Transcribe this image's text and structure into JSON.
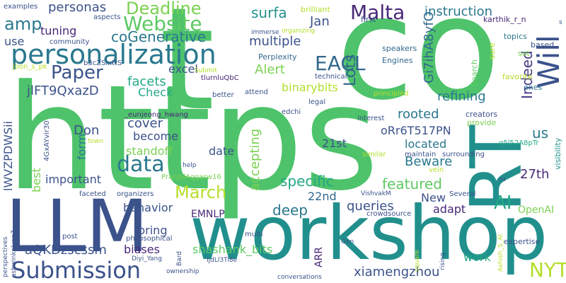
{
  "words": [
    {
      "text": "https",
      "color": "#4ec36b"
    },
    {
      "text": "t",
      "color": "#4ec36b"
    },
    {
      "text": "co",
      "color": "#4ec36b"
    },
    {
      "text": "workshop",
      "color": "#21908d"
    },
    {
      "text": "LLM",
      "color": "#3b528b"
    },
    {
      "text": "RT",
      "color": "#21908d"
    },
    {
      "text": "personalization",
      "color": "#2a788e"
    },
    {
      "text": "Submission",
      "color": "#3b528b"
    },
    {
      "text": "Website",
      "color": "#5ec962"
    },
    {
      "text": "Will",
      "color": "#3b528b"
    },
    {
      "text": "Malta",
      "color": "#482878"
    },
    {
      "text": "Paper",
      "color": "#3b528b"
    },
    {
      "text": "EACL",
      "color": "#31688e"
    },
    {
      "text": "Deadline",
      "color": "#7ad151"
    },
    {
      "text": "amp",
      "color": "#2a788e"
    },
    {
      "text": "data",
      "color": "#2a788e"
    },
    {
      "text": "March",
      "color": "#b5de2b"
    },
    {
      "text": "NYT",
      "color": "#b5de2b"
    },
    {
      "text": "AI",
      "color": "#22a884"
    },
    {
      "text": "Lots",
      "color": "#31688e"
    },
    {
      "text": "Indeed",
      "color": "#443983"
    },
    {
      "text": "Gi7ihA8yfO",
      "color": "#31688e"
    },
    {
      "text": "coGenerative",
      "color": "#2a788e"
    },
    {
      "text": "instruction",
      "color": "#2a788e"
    },
    {
      "text": "surfa",
      "color": "#21908d"
    },
    {
      "text": "Jan",
      "color": "#3b528b"
    },
    {
      "text": "multiple",
      "color": "#3b528b"
    },
    {
      "text": "personas",
      "color": "#3b528b"
    },
    {
      "text": "tuning",
      "color": "#482878"
    },
    {
      "text": "use",
      "color": "#3b528b"
    },
    {
      "text": "Alert",
      "color": "#7ad151"
    },
    {
      "text": "excel",
      "color": "#3b528b"
    },
    {
      "text": "facets",
      "color": "#22a884"
    },
    {
      "text": "jlFT9QxazD",
      "color": "#3b528b"
    },
    {
      "text": "Check",
      "color": "#22a884"
    },
    {
      "text": "binarybits",
      "color": "#b5de2b"
    },
    {
      "text": "refining",
      "color": "#2a788e"
    },
    {
      "text": "rooted",
      "color": "#2a788e"
    },
    {
      "text": "oRr6T517PN",
      "color": "#3b528b"
    },
    {
      "text": "us",
      "color": "#2a788e"
    },
    {
      "text": "cover",
      "color": "#3b528b"
    },
    {
      "text": "Don",
      "color": "#3b528b"
    },
    {
      "text": "become",
      "color": "#3b528b"
    },
    {
      "text": "form",
      "color": "#2a788e"
    },
    {
      "text": "standoff",
      "color": "#7ad151"
    },
    {
      "text": "date",
      "color": "#3b528b"
    },
    {
      "text": "21st",
      "color": "#3b528b"
    },
    {
      "text": "located",
      "color": "#2a788e"
    },
    {
      "text": "accepting",
      "color": "#7ad151"
    },
    {
      "text": "Beware",
      "color": "#2a788e"
    },
    {
      "text": "best",
      "color": "#7ad151"
    },
    {
      "text": "important",
      "color": "#3b528b"
    },
    {
      "text": "specific",
      "color": "#22a884"
    },
    {
      "text": "featured",
      "color": "#5ec962"
    },
    {
      "text": "22nd",
      "color": "#31688e"
    },
    {
      "text": "New",
      "color": "#3b528b"
    },
    {
      "text": "27th",
      "color": "#482878"
    },
    {
      "text": "behavior",
      "color": "#3b528b"
    },
    {
      "text": "EMNLP",
      "color": "#482878"
    },
    {
      "text": "deep",
      "color": "#2a788e"
    },
    {
      "text": "queries",
      "color": "#3b528b"
    },
    {
      "text": "adapt",
      "color": "#482878"
    },
    {
      "text": "OpenAI",
      "color": "#7ad151"
    },
    {
      "text": "bring",
      "color": "#3b528b"
    },
    {
      "text": "aQKDzscssm",
      "color": "#3b528b"
    },
    {
      "text": "biases",
      "color": "#482878"
    },
    {
      "text": "shashank_bits",
      "color": "#5ec962"
    },
    {
      "text": "xiamengzhou",
      "color": "#3b528b"
    },
    {
      "text": "ARR",
      "color": "#482878"
    },
    {
      "text": "work",
      "color": "#22a884"
    },
    {
      "text": "lWVZPDWSii",
      "color": "#3b528b"
    },
    {
      "text": "Perplexity",
      "color": "#31688e"
    },
    {
      "text": "speakers",
      "color": "#31688e"
    },
    {
      "text": "Engines",
      "color": "#31688e"
    },
    {
      "text": "Search",
      "color": "#5ec962"
    },
    {
      "text": "favorite",
      "color": "#b5de2b"
    },
    {
      "text": "brilliant",
      "color": "#b5de2b"
    },
    {
      "text": "first",
      "color": "#3b528b"
    },
    {
      "text": "karthik_r_n",
      "color": "#482878"
    },
    {
      "text": "topics",
      "color": "#2a788e"
    },
    {
      "text": "based",
      "color": "#3b528b"
    },
    {
      "text": "set",
      "color": "#7ad151"
    },
    {
      "text": "sure",
      "color": "#b5de2b"
    },
    {
      "text": "ones",
      "color": "#2a788e"
    },
    {
      "text": "visibility",
      "color": "#21908d"
    },
    {
      "text": "expertise",
      "color": "#3b528b"
    },
    {
      "text": "creators",
      "color": "#3b528b"
    },
    {
      "text": "provide",
      "color": "#7ad151"
    },
    {
      "text": "q5l52A8pTr",
      "color": "#22a884"
    },
    {
      "text": "examples",
      "color": "#3b528b"
    },
    {
      "text": "aspects",
      "color": "#3b528b"
    },
    {
      "text": "community",
      "color": "#3b528b"
    },
    {
      "text": "joon_s_pk",
      "color": "#b5de2b"
    },
    {
      "text": "b3cZSixttS",
      "color": "#3b528b"
    },
    {
      "text": "Submit",
      "color": "#b5de2b"
    },
    {
      "text": "tlurnluQbC",
      "color": "#482878"
    },
    {
      "text": "immerse",
      "color": "#3b528b"
    },
    {
      "text": "organizing",
      "color": "#b5de2b"
    },
    {
      "text": "technical",
      "color": "#3b528b"
    },
    {
      "text": "better",
      "color": "#3b528b"
    },
    {
      "text": "attend",
      "color": "#3b528b"
    },
    {
      "text": "principled",
      "color": "#b5de2b"
    },
    {
      "text": "legal",
      "color": "#3b528b"
    },
    {
      "text": "interest",
      "color": "#3b528b"
    },
    {
      "text": "edchi",
      "color": "#3b528b"
    },
    {
      "text": "_eunjeong_hwang",
      "color": "#482878"
    },
    {
      "text": "4GxAYvir30",
      "color": "#3b528b"
    },
    {
      "text": "town",
      "color": "#b5de2b"
    },
    {
      "text": "similar",
      "color": "#b5de2b"
    },
    {
      "text": "maintain",
      "color": "#3b528b"
    },
    {
      "text": "surrounding",
      "color": "#3b528b"
    },
    {
      "text": "vein",
      "color": "#b5de2b"
    },
    {
      "text": "help",
      "color": "#3b528b"
    },
    {
      "text": "PranjalAggarw16",
      "color": "#7ad151"
    },
    {
      "text": "organizers",
      "color": "#3b528b"
    },
    {
      "text": "faceted",
      "color": "#3b528b"
    },
    {
      "text": "VishvakM",
      "color": "#3b528b"
    },
    {
      "text": "Several",
      "color": "#3b528b"
    },
    {
      "text": "m",
      "color": "#3b528b"
    },
    {
      "text": "crowdsource",
      "color": "#3b528b"
    },
    {
      "text": "philosophical",
      "color": "#3b528b"
    },
    {
      "text": "multi",
      "color": "#3b528b"
    },
    {
      "text": "post",
      "color": "#3b528b"
    },
    {
      "text": "Gen",
      "color": "#3b528b"
    },
    {
      "text": "IjdLl3Ti8e",
      "color": "#3b528b"
    },
    {
      "text": "Bard",
      "color": "#3b528b"
    },
    {
      "text": "Diyi_Yang",
      "color": "#3b528b"
    },
    {
      "text": "ownership",
      "color": "#3b528b"
    },
    {
      "text": "conversations",
      "color": "#3b528b"
    },
    {
      "text": "square",
      "color": "#b5de2b"
    },
    {
      "text": "rising",
      "color": "#3b528b"
    },
    {
      "text": "Ashish_S_AI",
      "color": "#b5de2b"
    },
    {
      "text": "perspectives",
      "color": "#3b528b"
    },
    {
      "text": "ashwinkalyan7",
      "color": "#3b528b"
    },
    {
      "text": "s",
      "color": "#3b528b"
    }
  ]
}
